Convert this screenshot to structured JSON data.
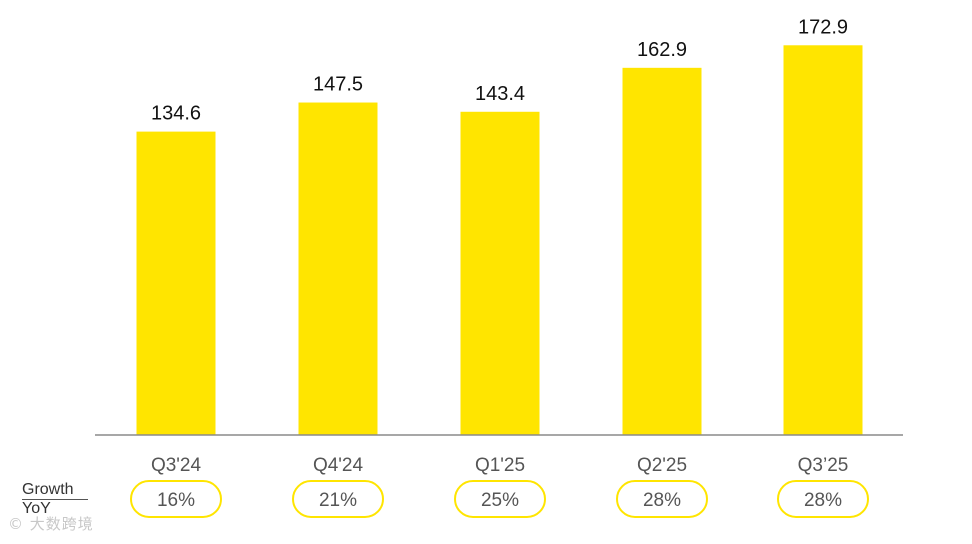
{
  "chart_data": {
    "type": "bar",
    "categories": [
      "Q3'24",
      "Q4'24",
      "Q1'25",
      "Q2'25",
      "Q3’25"
    ],
    "values": [
      134.6,
      147.5,
      143.4,
      162.9,
      172.9
    ],
    "value_labels": [
      "134.6",
      "147.5",
      "143.4",
      "162.9",
      "172.9"
    ],
    "ylim": [
      0,
      180
    ],
    "title": "",
    "xlabel": "",
    "ylabel": "",
    "grid": false,
    "legend": "none",
    "bar_color": "#FFE500",
    "growth_row": {
      "label_line1": "Growth",
      "label_line2": "YoY",
      "values": [
        "16%",
        "21%",
        "25%",
        "28%",
        "28%"
      ],
      "pill_border_color": "#FFE500"
    }
  },
  "watermark": "© 大数跨境"
}
